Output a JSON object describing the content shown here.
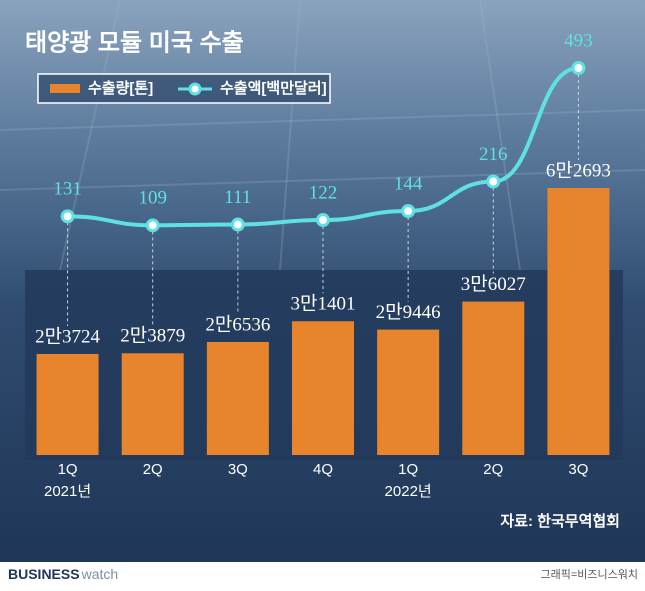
{
  "chart_data": {
    "type": "bar-line",
    "title": "태양광 모듈 미국 수출",
    "categories": [
      "1Q",
      "2Q",
      "3Q",
      "4Q",
      "1Q",
      "2Q",
      "3Q"
    ],
    "year_labels": [
      "2021년",
      null,
      null,
      null,
      "2022년",
      null,
      null
    ],
    "series": [
      {
        "name": "수출량[톤]",
        "kind": "bar",
        "color": "#e8842c",
        "values": [
          23724,
          23879,
          26536,
          31401,
          29446,
          36027,
          62693
        ],
        "value_labels": [
          "2만3724",
          "2만3879",
          "2만6536",
          "3만1401",
          "2만9446",
          "3만6027",
          "6만2693"
        ]
      },
      {
        "name": "수출액[백만달러]",
        "kind": "line",
        "color": "#5fe0e2",
        "values": [
          131,
          109,
          111,
          122,
          144,
          216,
          493
        ]
      }
    ],
    "source": "자료: 한국무역협회",
    "brand": [
      "BUSINESS",
      "watch"
    ],
    "credit": "그래픽=비즈니스워치"
  }
}
